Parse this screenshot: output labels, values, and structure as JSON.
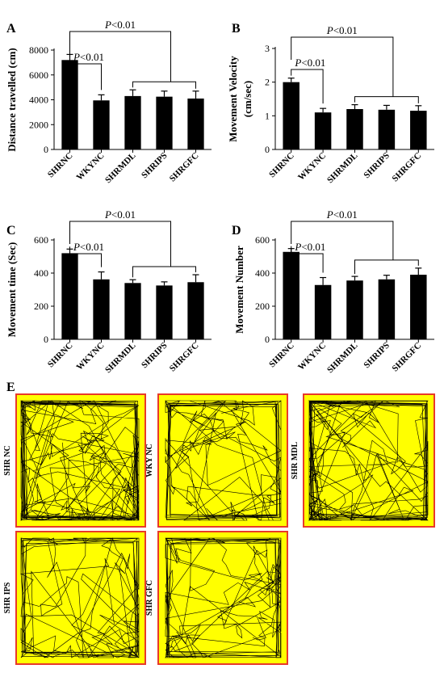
{
  "chart_data": [
    {
      "type": "bar",
      "panel": "A",
      "ylabel": "Distance travelled (cm)",
      "categories": [
        "SHRNC",
        "WKYNC",
        "SHRMDL",
        "SHRIPS",
        "SHRGFC"
      ],
      "values": [
        7200,
        3950,
        4300,
        4250,
        4100
      ],
      "errors": [
        450,
        450,
        500,
        450,
        600
      ],
      "ylim": [
        0,
        8000
      ],
      "yticks": [
        "0",
        "2000",
        "4000",
        "6000",
        "8000"
      ],
      "significance": [
        {
          "label_prefix": "P",
          "label_value": "<0.01",
          "type": "pair"
        },
        {
          "label_prefix": "P",
          "label_value": "<0.01",
          "type": "group"
        }
      ]
    },
    {
      "type": "bar",
      "panel": "B",
      "ylabel_lines": [
        "Movement Velocity",
        "(cm/sec)"
      ],
      "categories": [
        "SHRNC",
        "WKYNC",
        "SHRMDL",
        "SHRIPS",
        "SHRGFC"
      ],
      "values": [
        2.0,
        1.1,
        1.2,
        1.18,
        1.15
      ],
      "errors": [
        0.12,
        0.12,
        0.13,
        0.13,
        0.15
      ],
      "ylim": [
        0,
        3
      ],
      "yticks": [
        "0",
        "1",
        "2",
        "3"
      ],
      "significance": [
        {
          "label_prefix": "P",
          "label_value": "<0.01",
          "type": "pair"
        },
        {
          "label_prefix": "P",
          "label_value": "<0.01",
          "type": "group"
        }
      ]
    },
    {
      "type": "bar",
      "panel": "C",
      "ylabel": "Movement time (Sec)",
      "categories": [
        "SHRNC",
        "WKYNC",
        "SHRMDL",
        "SHRIPS",
        "SHRGFC"
      ],
      "values": [
        520,
        362,
        340,
        325,
        345
      ],
      "errors": [
        25,
        45,
        20,
        22,
        45
      ],
      "ylim": [
        0,
        600
      ],
      "yticks": [
        "0",
        "200",
        "400",
        "600"
      ],
      "significance": [
        {
          "label_prefix": "P",
          "label_value": "<0.01",
          "type": "pair"
        },
        {
          "label_prefix": "P",
          "label_value": "<0.01",
          "type": "group"
        }
      ]
    },
    {
      "type": "bar",
      "panel": "D",
      "ylabel": "Movement Number",
      "categories": [
        "SHRNC",
        "WKYNC",
        "SHRMDL",
        "SHRIPS",
        "SHRGFC"
      ],
      "values": [
        528,
        328,
        355,
        362,
        390
      ],
      "errors": [
        20,
        45,
        25,
        25,
        40
      ],
      "ylim": [
        0,
        600
      ],
      "yticks": [
        "0",
        "200",
        "400",
        "600"
      ],
      "significance": [
        {
          "label_prefix": "P",
          "label_value": "<0.01",
          "type": "pair"
        },
        {
          "label_prefix": "P",
          "label_value": "<0.01",
          "type": "group"
        }
      ]
    }
  ],
  "tracks": {
    "panel": "E",
    "labels": [
      "SHR NC",
      "WKY NC",
      "SHR MDL",
      "SHR IPS",
      "SHR GFC"
    ],
    "density": [
      1.0,
      0.55,
      0.85,
      0.4,
      0.6
    ],
    "fill_color": "#ffff00",
    "border_color": "#e8392a",
    "line_color": "#000000"
  }
}
